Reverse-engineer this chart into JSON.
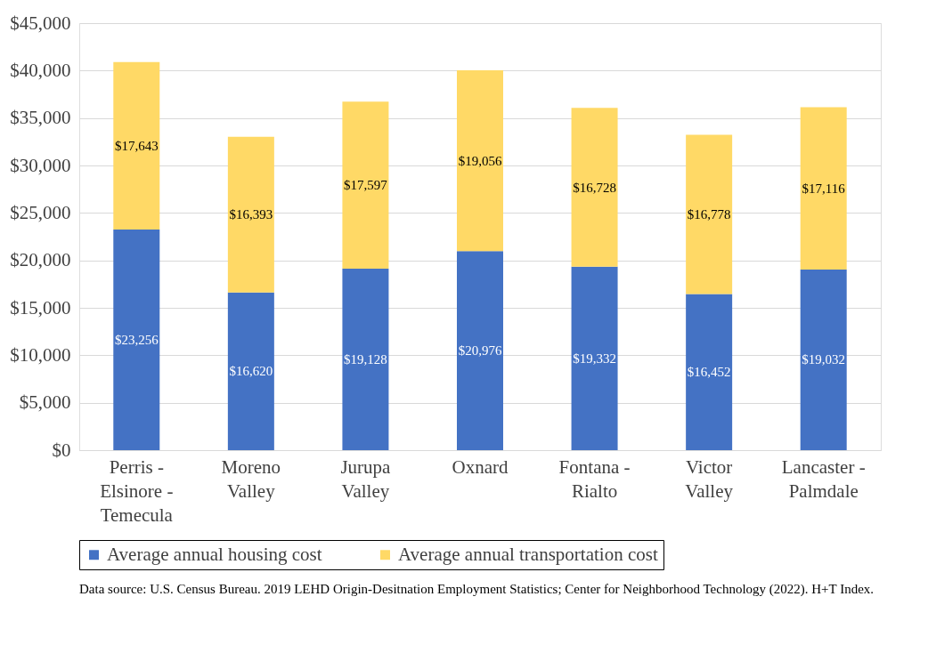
{
  "chart_data": {
    "type": "bar",
    "stacked": true,
    "categories": [
      "Perris - Elsinore - Temecula",
      "Moreno Valley",
      "Jurupa Valley",
      "Oxnard",
      "Fontana - Rialto",
      "Victor Valley",
      "Lancaster - Palmdale"
    ],
    "series": [
      {
        "name": "Average annual housing cost",
        "color": "#4472c4",
        "values": [
          23256,
          16620,
          19128,
          20976,
          19332,
          16452,
          19032
        ]
      },
      {
        "name": "Average annual transportation cost",
        "color": "#ffd966",
        "values": [
          17643,
          16393,
          17597,
          19056,
          16728,
          16778,
          17116
        ]
      }
    ],
    "ylim": [
      0,
      45000
    ],
    "yticks": [
      {
        "value": 0,
        "label": "$0"
      },
      {
        "value": 5000,
        "label": "$5,000"
      },
      {
        "value": 10000,
        "label": "$10,000"
      },
      {
        "value": 15000,
        "label": "$15,000"
      },
      {
        "value": 20000,
        "label": "$20,000"
      },
      {
        "value": 25000,
        "label": "$25,000"
      },
      {
        "value": 30000,
        "label": "$30,000"
      },
      {
        "value": 35000,
        "label": "$35,000"
      },
      {
        "value": 40000,
        "label": "$40,000"
      },
      {
        "value": 45000,
        "label": "$45,000"
      }
    ],
    "value_labels": [
      [
        "$23,256",
        "$16,620",
        "$19,128",
        "$20,976",
        "$19,332",
        "$16,452",
        "$19,032"
      ],
      [
        "$17,643",
        "$16,393",
        "$17,597",
        "$19,056",
        "$16,728",
        "$16,778",
        "$17,116"
      ]
    ],
    "grid": "y",
    "legend": "bottom",
    "annotations": [
      "Data source:  U.S. Census Bureau. 2019 LEHD Origin-Desitnation Employment Statistics; Center for Neighborhood Technology (2022). H+T Index."
    ]
  }
}
